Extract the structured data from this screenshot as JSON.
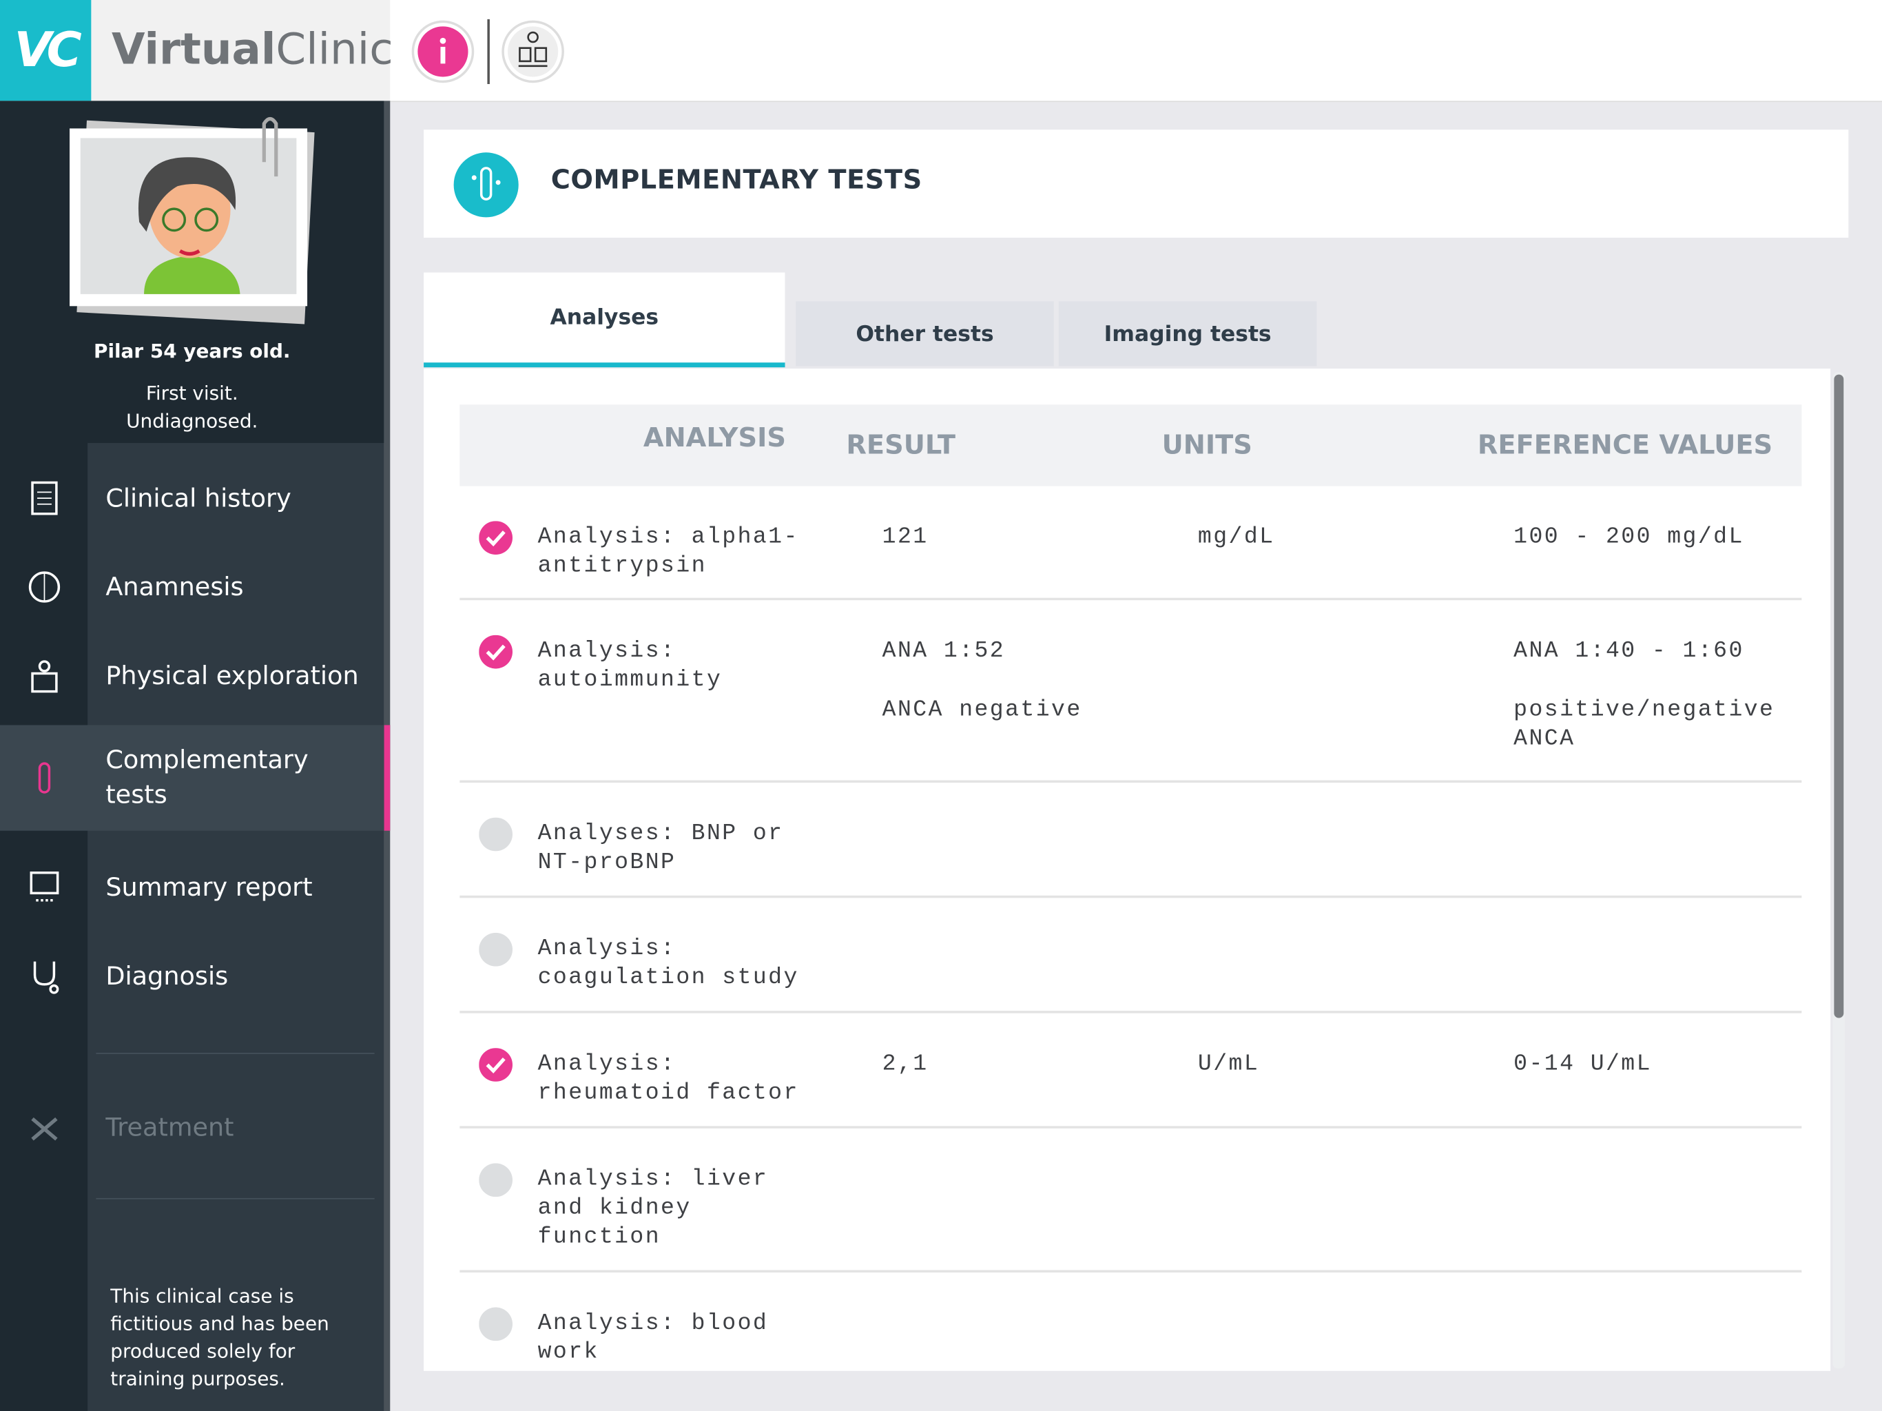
{
  "header": {
    "logo_mark": "VC",
    "brand_first": "Virtual",
    "brand_second": "Clinic"
  },
  "patient": {
    "name": "Pilar 54 years old.",
    "visit": "First visit.",
    "status": "Undiagnosed."
  },
  "nav": [
    {
      "label": "Clinical history",
      "active": false,
      "disabled": false
    },
    {
      "label": "Anamnesis",
      "active": false,
      "disabled": false
    },
    {
      "label": "Physical exploration",
      "active": false,
      "disabled": false
    },
    {
      "label": "Complementary tests",
      "active": true,
      "disabled": false
    },
    {
      "label": "Summary report",
      "active": false,
      "disabled": false
    },
    {
      "label": "Diagnosis",
      "active": false,
      "disabled": false
    },
    {
      "label": "Treatment",
      "active": false,
      "disabled": true
    }
  ],
  "disclaimer": "This clinical case is fictitious and has been produced solely for training purposes.",
  "section": {
    "title": "COMPLEMENTARY TESTS"
  },
  "tabs": [
    {
      "label": "Analyses",
      "active": true
    },
    {
      "label": "Other tests",
      "active": false
    },
    {
      "label": "Imaging tests",
      "active": false
    }
  ],
  "table": {
    "headers": [
      "ANALYSIS",
      "RESULT",
      "UNITS",
      "REFERENCE VALUES"
    ],
    "rows": [
      {
        "checked": true,
        "name": "Analysis: alpha1-antitrypsin",
        "result": [
          "121"
        ],
        "units": "mg/dL",
        "reference": [
          "100 - 200 mg/dL"
        ]
      },
      {
        "checked": true,
        "name": "Analysis: autoimmunity",
        "result": [
          "ANA 1:52",
          "ANCA negative"
        ],
        "units": null,
        "reference": [
          "ANA 1:40 - 1:60",
          "positive/negative ANCA"
        ]
      },
      {
        "checked": false,
        "name": "Analyses: BNP or NT-proBNP",
        "result": [],
        "units": null,
        "reference": []
      },
      {
        "checked": false,
        "name": "Analysis: coagulation study",
        "result": [],
        "units": null,
        "reference": []
      },
      {
        "checked": true,
        "name": "Analysis: rheumatoid factor",
        "result": [
          "2,1"
        ],
        "units": "U/mL",
        "reference": [
          "0-14 U/mL"
        ]
      },
      {
        "checked": false,
        "name": "Analysis: liver and kidney function",
        "result": [],
        "units": null,
        "reference": []
      },
      {
        "checked": false,
        "name": "Analysis: blood work",
        "result": [],
        "units": null,
        "reference": []
      }
    ]
  }
}
